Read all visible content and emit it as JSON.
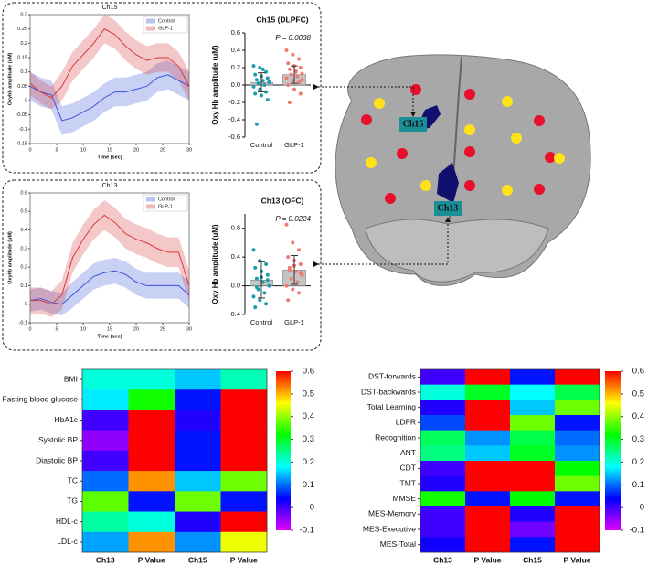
{
  "chart_data": [
    {
      "type": "line",
      "title": "Ch15",
      "xlabel": "Time (sec)",
      "ylabel": "Oxyhb amplitude (uM)",
      "x": [
        0,
        2,
        4,
        6,
        8,
        10,
        12,
        14,
        16,
        18,
        20,
        22,
        24,
        26,
        28,
        30
      ],
      "xlim": [
        0,
        30
      ],
      "xticks": [
        0,
        5,
        10,
        15,
        20,
        25,
        30
      ],
      "ylim": [
        -0.15,
        0.3
      ],
      "yticks": [
        -0.15,
        -0.1,
        -0.05,
        0,
        0.05,
        0.1,
        0.15,
        0.2,
        0.25,
        0.3
      ],
      "legend": "upper right",
      "series": [
        {
          "name": "Control",
          "color": "#3a55d8",
          "values": [
            0.05,
            0.03,
            0.02,
            -0.07,
            -0.06,
            -0.04,
            -0.02,
            0.01,
            0.03,
            0.03,
            0.04,
            0.05,
            0.08,
            0.09,
            0.07,
            0.05
          ],
          "lower": [
            0.0,
            -0.02,
            -0.03,
            -0.12,
            -0.11,
            -0.09,
            -0.07,
            -0.04,
            -0.02,
            -0.02,
            -0.01,
            0.0,
            0.03,
            0.04,
            0.02,
            0.0
          ],
          "upper": [
            0.1,
            0.08,
            0.07,
            -0.02,
            -0.01,
            0.01,
            0.03,
            0.06,
            0.08,
            0.08,
            0.09,
            0.1,
            0.13,
            0.14,
            0.12,
            0.1
          ]
        },
        {
          "name": "GLP-1",
          "color": "#d83a3a",
          "values": [
            0.06,
            0.03,
            0.01,
            0.05,
            0.12,
            0.16,
            0.2,
            0.25,
            0.23,
            0.19,
            0.16,
            0.14,
            0.15,
            0.15,
            0.12,
            0.05
          ],
          "lower": [
            0.02,
            -0.01,
            -0.03,
            0.0,
            0.07,
            0.11,
            0.15,
            0.2,
            0.18,
            0.14,
            0.11,
            0.09,
            0.1,
            0.1,
            0.07,
            0.0
          ],
          "upper": [
            0.1,
            0.07,
            0.05,
            0.1,
            0.17,
            0.21,
            0.25,
            0.3,
            0.28,
            0.24,
            0.21,
            0.19,
            0.2,
            0.2,
            0.17,
            0.1
          ]
        }
      ]
    },
    {
      "type": "bar",
      "title": "Ch15 (DLPFC)",
      "ylabel": "Oxy Hb amplitude (uM)",
      "annotation": "P = 0.0038",
      "categories": [
        "Control",
        "GLP-1"
      ],
      "means": [
        0.03,
        0.12
      ],
      "errors": [
        0.11,
        0.1
      ],
      "point_colors": [
        "#1f9bb0",
        "#f07a72"
      ],
      "bar_color": "#c4c4c4",
      "points": [
        [
          0.22,
          0.2,
          0.15,
          0.12,
          0.1,
          0.08,
          0.06,
          0.05,
          0.03,
          0.02,
          0.0,
          -0.02,
          -0.05,
          -0.08,
          -0.1,
          -0.12,
          -0.17,
          -0.45,
          0.18,
          0.04
        ],
        [
          0.4,
          0.35,
          0.3,
          0.25,
          0.22,
          0.2,
          0.18,
          0.15,
          0.13,
          0.12,
          0.1,
          0.08,
          0.05,
          0.03,
          0.0,
          -0.05,
          -0.1,
          -0.2,
          0.16,
          0.06
        ]
      ],
      "ylim": [
        -0.6,
        0.6
      ],
      "yticks": [
        -0.6,
        -0.4,
        -0.2,
        {
          "value": 0,
          "label": "0.0"
        },
        0.2,
        0.4,
        0.6
      ]
    },
    {
      "type": "line",
      "title": "Ch13",
      "xlabel": "Time (sec)",
      "ylabel": "Oxyhb amplitude (uM)",
      "x": [
        0,
        2,
        4,
        6,
        8,
        10,
        12,
        14,
        16,
        18,
        20,
        22,
        24,
        26,
        28,
        30
      ],
      "xlim": [
        0,
        30
      ],
      "xticks": [
        0,
        5,
        10,
        15,
        20,
        25,
        30
      ],
      "ylim": [
        -0.1,
        0.6
      ],
      "yticks": [
        -0.1,
        0,
        0.1,
        0.2,
        0.3,
        0.4,
        0.5,
        0.6
      ],
      "legend": "upper right",
      "series": [
        {
          "name": "Control",
          "color": "#3a55d8",
          "values": [
            0.02,
            0.03,
            0.01,
            0.0,
            0.05,
            0.1,
            0.15,
            0.17,
            0.18,
            0.16,
            0.12,
            0.1,
            0.1,
            0.1,
            0.1,
            0.05
          ],
          "lower": [
            -0.04,
            -0.03,
            -0.05,
            -0.06,
            -0.02,
            0.03,
            0.08,
            0.1,
            0.11,
            0.09,
            0.05,
            0.03,
            0.03,
            0.03,
            0.03,
            -0.02
          ],
          "upper": [
            0.08,
            0.09,
            0.07,
            0.06,
            0.12,
            0.17,
            0.22,
            0.24,
            0.25,
            0.23,
            0.19,
            0.17,
            0.17,
            0.17,
            0.17,
            0.12
          ]
        },
        {
          "name": "GLP-1",
          "color": "#d83a3a",
          "values": [
            0.02,
            0.02,
            0.0,
            0.05,
            0.25,
            0.35,
            0.43,
            0.48,
            0.44,
            0.38,
            0.35,
            0.33,
            0.3,
            0.28,
            0.28,
            0.1
          ],
          "lower": [
            -0.05,
            -0.05,
            -0.07,
            -0.03,
            0.17,
            0.27,
            0.35,
            0.4,
            0.36,
            0.3,
            0.27,
            0.25,
            0.22,
            0.2,
            0.2,
            0.02
          ],
          "upper": [
            0.09,
            0.09,
            0.07,
            0.13,
            0.33,
            0.43,
            0.51,
            0.56,
            0.52,
            0.46,
            0.43,
            0.41,
            0.38,
            0.36,
            0.36,
            0.18
          ]
        }
      ]
    },
    {
      "type": "bar",
      "title": "Ch13 (OFC)",
      "ylabel": "Oxy Hb amplitude (uM)",
      "annotation": "P = 0.0224",
      "categories": [
        "Control",
        "GLP-1"
      ],
      "means": [
        0.08,
        0.22
      ],
      "errors": [
        0.25,
        0.2
      ],
      "point_colors": [
        "#1f9bb0",
        "#f07a72"
      ],
      "bar_color": "#c4c4c4",
      "points": [
        [
          0.5,
          0.35,
          0.3,
          0.25,
          0.2,
          0.15,
          0.1,
          0.05,
          0.0,
          -0.05,
          -0.1,
          -0.15,
          -0.2,
          -0.25,
          -0.3,
          0.12,
          0.08,
          -0.02
        ],
        [
          0.85,
          0.6,
          0.5,
          0.4,
          0.35,
          0.3,
          0.25,
          0.2,
          0.15,
          0.1,
          0.05,
          0.0,
          -0.05,
          -0.1,
          -0.2,
          0.28,
          0.18,
          0.22
        ]
      ],
      "ylim": [
        -0.4,
        1.0
      ],
      "yticks": [
        -0.4,
        {
          "value": 0,
          "label": "0.0"
        },
        0.4,
        0.8
      ]
    },
    {
      "type": "heatmap",
      "rows": [
        "BMI",
        "Fasting blood glucose",
        "HbA1c",
        "Systolic BP",
        "Diastolic BP",
        "TC",
        "TG",
        "HDL-c",
        "LDL-c"
      ],
      "columns": [
        "Ch13",
        "P Value",
        "Ch15",
        "P Value"
      ],
      "values": [
        [
          0.2,
          0.2,
          0.15,
          0.22
        ],
        [
          0.17,
          0.33,
          0.05,
          0.6
        ],
        [
          0.0,
          0.6,
          0.02,
          0.6
        ],
        [
          -0.05,
          0.6,
          0.05,
          0.6
        ],
        [
          0.0,
          0.6,
          0.05,
          0.6
        ],
        [
          0.1,
          0.52,
          0.15,
          0.38
        ],
        [
          0.37,
          0.05,
          0.38,
          0.05
        ],
        [
          0.23,
          0.2,
          0.02,
          0.6
        ],
        [
          0.13,
          0.52,
          0.12,
          0.45
        ]
      ],
      "colormap": [
        "#e000ff",
        "#0000ff",
        "#00ffff",
        "#00ff00",
        "#ffff00",
        "#ff0000"
      ],
      "clim": [
        -0.1,
        0.6
      ],
      "cticks": [
        -0.1,
        0,
        0.1,
        0.2,
        0.3,
        0.4,
        0.5,
        0.6
      ]
    },
    {
      "type": "heatmap",
      "rows": [
        "DST-forwards",
        "DST-backwards",
        "Total Learning",
        "LDFR",
        "Recognition",
        "ANT",
        "CDT",
        "TMT",
        "MMSE",
        "MES-Memory",
        "MES-Executive",
        "MES-Total"
      ],
      "columns": [
        "Ch13",
        "P Value",
        "Ch15",
        "P Value"
      ],
      "values": [
        [
          0.0,
          0.6,
          0.05,
          0.6
        ],
        [
          0.2,
          0.3,
          0.18,
          0.28
        ],
        [
          0.02,
          0.6,
          0.15,
          0.38
        ],
        [
          0.08,
          0.6,
          0.38,
          0.05
        ],
        [
          0.27,
          0.12,
          0.28,
          0.1
        ],
        [
          0.25,
          0.15,
          0.3,
          0.12
        ],
        [
          0.0,
          0.6,
          0.6,
          0.32
        ],
        [
          0.02,
          0.6,
          0.6,
          0.38
        ],
        [
          0.33,
          0.05,
          0.32,
          0.05
        ],
        [
          0.0,
          0.6,
          0.02,
          0.6
        ],
        [
          0.0,
          0.6,
          -0.03,
          0.6
        ],
        [
          0.03,
          0.6,
          0.05,
          0.6
        ]
      ],
      "colormap": [
        "#e000ff",
        "#0000ff",
        "#00ffff",
        "#00ff00",
        "#ffff00",
        "#ff0000"
      ],
      "clim": [
        -0.1,
        0.6
      ],
      "cticks": [
        -0.1,
        0,
        0.1,
        0.2,
        0.3,
        0.4,
        0.5,
        0.6
      ]
    }
  ],
  "brain": {
    "labels": [
      "Ch15",
      "Ch13"
    ]
  }
}
